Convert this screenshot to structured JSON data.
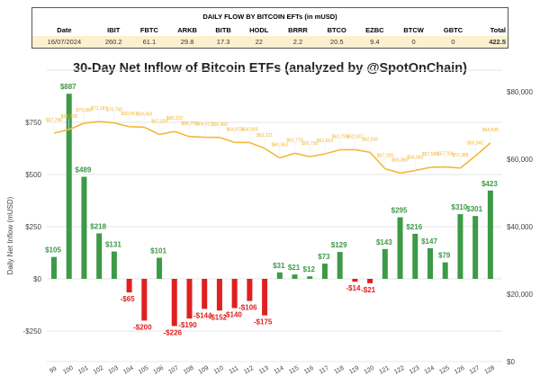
{
  "table": {
    "caption": "DAILY FLOW BY BITCOIN EFTs (in mUSD)",
    "headers": [
      "Date",
      "IBIT",
      "FBTC",
      "ARKB",
      "BITB",
      "HODL",
      "BRRR",
      "BTCO",
      "EZBC",
      "BTCW",
      "GBTC",
      "Total"
    ],
    "row": [
      "16/07/2024",
      "260.2",
      "61.1",
      "29.8",
      "17.3",
      "22",
      "2.2",
      "20.5",
      "9.4",
      "0",
      "0",
      "422.5"
    ]
  },
  "chart_data": {
    "type": "bar",
    "title": "30-Day Net Inflow of Bitcoin ETFs (analyzed by @SpotOnChain)",
    "ylabel": "Daily Net Inflow (mUSD)",
    "categories": [
      "99",
      "100",
      "101",
      "102",
      "103",
      "104",
      "105",
      "106",
      "107",
      "108",
      "109",
      "110",
      "111",
      "112",
      "113",
      "114",
      "115",
      "116",
      "117",
      "118",
      "119",
      "120",
      "121",
      "122",
      "123",
      "124",
      "125",
      "126",
      "127",
      "128"
    ],
    "series": [
      {
        "type": "bar",
        "values": [
          105,
          887,
          489,
          218,
          131,
          -65,
          -200,
          101,
          -226,
          -190,
          -144,
          -152,
          -140,
          -106,
          -175,
          31,
          21,
          12,
          73,
          129,
          -14,
          -21,
          143,
          295,
          216,
          147,
          79,
          310,
          301,
          423
        ],
        "labels": [
          "$105",
          "$887",
          "$489",
          "$218",
          "$131",
          "-$65",
          "-$200",
          "$101",
          "-$226",
          "-$190",
          "-$144",
          "-$152",
          "-$140",
          "-$106",
          "-$175",
          "$31",
          "$21",
          "$12",
          "$73",
          "$129",
          "-$14",
          "-$21",
          "$143",
          "$295",
          "$216",
          "$147",
          "$79",
          "$310",
          "$301",
          "$423"
        ],
        "axis": "left"
      },
      {
        "type": "line",
        "values": [
          67740,
          68808,
          70680,
          71187,
          70760,
          69657,
          69493,
          67329,
          68223,
          66709,
          66517,
          66460,
          64973,
          64945,
          63221,
          60363,
          61770,
          60756,
          61563,
          62793,
          62837,
          62043,
          57189,
          55880,
          56665,
          57585,
          57704,
          57388,
          60942,
          64835
        ],
        "labels": [
          "$67,740",
          "$68,808",
          "$70,680",
          "$71,187",
          "$70,760",
          "$69,657",
          "$69,493",
          "$67,329",
          "$68,223",
          "$66,709",
          "$66,517",
          "$66,460",
          "$64,973",
          "$64,945",
          "$63,221",
          "$60,363",
          "$61,770",
          "$60,756",
          "$61,563",
          "$62,793",
          "$62,837",
          "$62,043",
          "$57,189",
          "$55,880",
          "$56,665",
          "$57,585",
          "$57,704",
          "$57,388",
          "$60,942",
          "$64,835"
        ],
        "axis": "right"
      }
    ],
    "left_ticks": [
      {
        "v": 750,
        "t": "$750"
      },
      {
        "v": 500,
        "t": "$500"
      },
      {
        "v": 250,
        "t": "$250"
      },
      {
        "v": 0,
        "t": "$0"
      },
      {
        "v": -250,
        "t": "-$250"
      }
    ],
    "right_ticks": [
      {
        "v": 80000,
        "t": "$80,000"
      },
      {
        "v": 60000,
        "t": "$60,000"
      },
      {
        "v": 40000,
        "t": "$40,000"
      },
      {
        "v": 20000,
        "t": "$20,000"
      },
      {
        "v": 0,
        "t": "$0"
      }
    ],
    "ylim_left": [
      -400,
      1000
    ],
    "ylim_right": [
      0,
      80000
    ],
    "grid": true,
    "colors": {
      "positive": "#3d9a47",
      "negative": "#e02020",
      "price": "#f4b736",
      "positive_label": "#3d9a47",
      "negative_label": "#e02020"
    }
  }
}
